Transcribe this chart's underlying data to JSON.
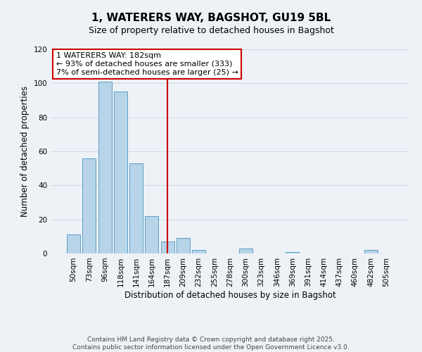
{
  "title": "1, WATERERS WAY, BAGSHOT, GU19 5BL",
  "subtitle": "Size of property relative to detached houses in Bagshot",
  "xlabel": "Distribution of detached houses by size in Bagshot",
  "ylabel": "Number of detached properties",
  "categories": [
    "50sqm",
    "73sqm",
    "96sqm",
    "118sqm",
    "141sqm",
    "164sqm",
    "187sqm",
    "209sqm",
    "232sqm",
    "255sqm",
    "278sqm",
    "300sqm",
    "323sqm",
    "346sqm",
    "369sqm",
    "391sqm",
    "414sqm",
    "437sqm",
    "460sqm",
    "482sqm",
    "505sqm"
  ],
  "values": [
    11,
    56,
    101,
    95,
    53,
    22,
    7,
    9,
    2,
    0,
    0,
    3,
    0,
    0,
    1,
    0,
    0,
    0,
    0,
    2,
    0
  ],
  "bar_color": "#b8d4e8",
  "bar_edge_color": "#5a9ec9",
  "grid_color": "#d0dce8",
  "vline_x_index": 6,
  "vline_color": "#cc0000",
  "annotation_line1": "1 WATERERS WAY: 182sqm",
  "annotation_line2": "← 93% of detached houses are smaller (333)",
  "annotation_line3": "7% of semi-detached houses are larger (25) →",
  "annotation_box_color": "#ffffff",
  "annotation_box_edge_color": "#cc0000",
  "ylim": [
    0,
    120
  ],
  "yticks": [
    0,
    20,
    40,
    60,
    80,
    100,
    120
  ],
  "footer_line1": "Contains HM Land Registry data © Crown copyright and database right 2025.",
  "footer_line2": "Contains public sector information licensed under the Open Government Licence v3.0.",
  "background_color": "#eef2f7",
  "title_fontsize": 11,
  "subtitle_fontsize": 9,
  "axis_label_fontsize": 8.5,
  "tick_fontsize": 7.5,
  "annotation_fontsize": 8,
  "footer_fontsize": 6.5
}
